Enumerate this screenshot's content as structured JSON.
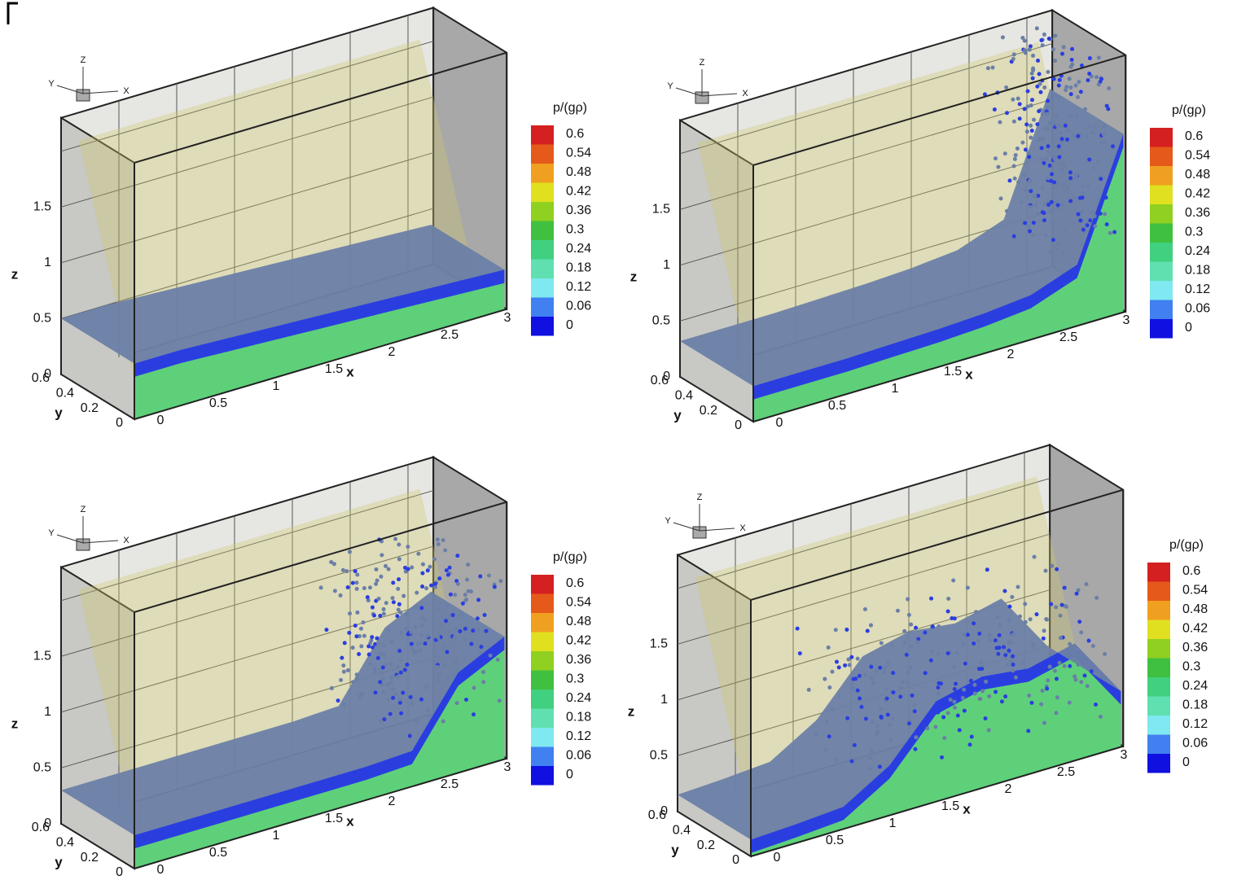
{
  "panels": [
    {
      "triad": {
        "z": "Z",
        "y": "Y",
        "x": "X"
      },
      "z_axis": {
        "title": "z",
        "ticks": [
          "0",
          "0.5",
          "1",
          "1.5"
        ]
      },
      "x_axis": {
        "title": "x",
        "ticks": [
          "0",
          "0.5",
          "1",
          "1.5",
          "2",
          "2.5",
          "3"
        ]
      },
      "y_axis": {
        "title": "y",
        "ticks": [
          "0",
          "0.2",
          "0.4",
          "0.6"
        ]
      },
      "legend": {
        "title": "p/(gρ)",
        "labels": [
          "0.6",
          "0.54",
          "0.48",
          "0.42",
          "0.36",
          "0.3",
          "0.24",
          "0.18",
          "0.12",
          "0.06",
          "0"
        ],
        "colors": [
          "#d42020",
          "#e55a1a",
          "#f0a020",
          "#e0e020",
          "#90d020",
          "#40c040",
          "#40d080",
          "#60e0b0",
          "#80e8f0",
          "#4080f0",
          "#1010e0"
        ]
      }
    },
    {
      "triad": {
        "z": "Z",
        "y": "Y",
        "x": "X"
      },
      "z_axis": {
        "title": "z",
        "ticks": [
          "0",
          "0.5",
          "1",
          "1.5"
        ]
      },
      "x_axis": {
        "title": "x",
        "ticks": [
          "0",
          "0.5",
          "1",
          "1.5",
          "2",
          "2.5",
          "3"
        ]
      },
      "y_axis": {
        "title": "y",
        "ticks": [
          "0",
          "0.2",
          "0.4",
          "0.6"
        ]
      },
      "legend": {
        "title": "p/(gρ)",
        "labels": [
          "0.6",
          "0.54",
          "0.48",
          "0.42",
          "0.36",
          "0.3",
          "0.24",
          "0.18",
          "0.12",
          "0.06",
          "0"
        ],
        "colors": [
          "#d42020",
          "#e55a1a",
          "#f0a020",
          "#e0e020",
          "#90d020",
          "#40c040",
          "#40d080",
          "#60e0b0",
          "#80e8f0",
          "#4080f0",
          "#1010e0"
        ]
      }
    },
    {
      "triad": {
        "z": "Z",
        "y": "Y",
        "x": "X"
      },
      "z_axis": {
        "title": "z",
        "ticks": [
          "0",
          "0.5",
          "1",
          "1.5"
        ]
      },
      "x_axis": {
        "title": "x",
        "ticks": [
          "0",
          "0.5",
          "1",
          "1.5",
          "2",
          "2.5",
          "3"
        ]
      },
      "y_axis": {
        "title": "y",
        "ticks": [
          "0",
          "0.2",
          "0.4",
          "0.6"
        ]
      },
      "legend": {
        "title": "p/(gρ)",
        "labels": [
          "0.6",
          "0.54",
          "0.48",
          "0.42",
          "0.36",
          "0.3",
          "0.24",
          "0.18",
          "0.12",
          "0.06",
          "0"
        ],
        "colors": [
          "#d42020",
          "#e55a1a",
          "#f0a020",
          "#e0e020",
          "#90d020",
          "#40c040",
          "#40d080",
          "#60e0b0",
          "#80e8f0",
          "#4080f0",
          "#1010e0"
        ]
      }
    },
    {
      "triad": {
        "z": "Z",
        "y": "Y",
        "x": "X"
      },
      "z_axis": {
        "title": "z",
        "ticks": [
          "0",
          "0.5",
          "1",
          "1.5"
        ]
      },
      "x_axis": {
        "title": "x",
        "ticks": [
          "0",
          "0.5",
          "1",
          "1.5",
          "2",
          "2.5",
          "3"
        ]
      },
      "y_axis": {
        "title": "y",
        "ticks": [
          "0",
          "0.2",
          "0.4",
          "0.6"
        ]
      },
      "legend": {
        "title": "p/(gρ)",
        "labels": [
          "0.6",
          "0.54",
          "0.48",
          "0.42",
          "0.36",
          "0.3",
          "0.24",
          "0.18",
          "0.12",
          "0.06",
          "0"
        ],
        "colors": [
          "#d42020",
          "#e55a1a",
          "#f0a020",
          "#e0e020",
          "#90d020",
          "#40c040",
          "#40d080",
          "#60e0b0",
          "#80e8f0",
          "#4080f0",
          "#1010e0"
        ]
      }
    }
  ]
}
